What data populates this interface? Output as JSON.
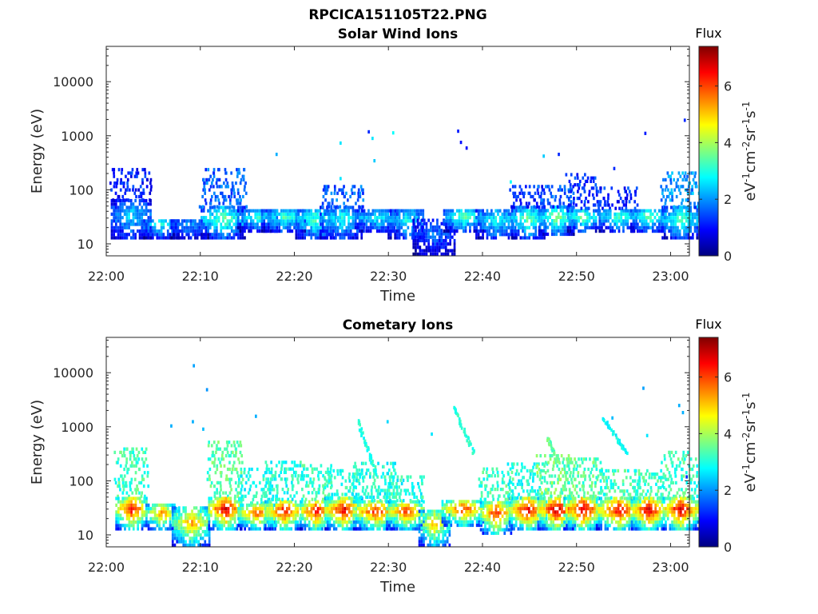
{
  "figure": {
    "title": "RPCICA151105T22.PNG"
  },
  "colormap": {
    "name": "jet",
    "label": "eV-1cm-2sr-1s-1",
    "title": "Flux",
    "range": [
      0,
      7.4
    ],
    "ticks": [
      "0",
      "2",
      "4",
      "6"
    ],
    "stops": [
      "#00007f",
      "#0000ff",
      "#007fff",
      "#00ffff",
      "#7fff7f",
      "#ffff00",
      "#ff7f00",
      "#ff0000",
      "#7f0000"
    ]
  },
  "chart_data": [
    {
      "type": "heatmap",
      "title": "Solar Wind Ions",
      "xlabel": "Time",
      "ylabel": "Energy (eV)",
      "x_ticks": [
        "22:00",
        "22:10",
        "22:20",
        "22:30",
        "22:40",
        "22:50",
        "23:00"
      ],
      "x_tick_minutes": [
        0,
        10,
        20,
        30,
        40,
        50,
        60
      ],
      "xlim_minutes": [
        0,
        62
      ],
      "y_scale": "log",
      "y_ticks": [
        "10",
        "100",
        "1000",
        "10000"
      ],
      "y_tick_values": [
        10,
        100,
        1000,
        10000
      ],
      "ylim": [
        6,
        45000
      ],
      "grid": false,
      "clusters": [
        {
          "t": 2.6,
          "e_lo": 12,
          "e_hi": 60,
          "peak": 2.6,
          "tail_e": 230,
          "tail_flux": 1.1
        },
        {
          "t": 5.8,
          "e_lo": 12,
          "e_hi": 28,
          "peak": 3.0
        },
        {
          "t": 8.8,
          "e_lo": 12,
          "e_hi": 26,
          "peak": 2.2
        },
        {
          "t": 12.4,
          "e_lo": 12,
          "e_hi": 45,
          "peak": 3.6,
          "tail_e": 230,
          "tail_flux": 1.6
        },
        {
          "t": 16.0,
          "e_lo": 16,
          "e_hi": 38,
          "peak": 3.0
        },
        {
          "t": 18.8,
          "e_lo": 16,
          "e_hi": 40,
          "peak": 3.3
        },
        {
          "t": 22.2,
          "e_lo": 12,
          "e_hi": 42,
          "peak": 3.4
        },
        {
          "t": 25.0,
          "e_lo": 12,
          "e_hi": 45,
          "peak": 3.0,
          "tail_e": 120,
          "tail_flux": 1.6
        },
        {
          "t": 28.8,
          "e_lo": 16,
          "e_hi": 38,
          "peak": 2.9
        },
        {
          "t": 31.8,
          "e_lo": 12,
          "e_hi": 42,
          "peak": 3.0
        },
        {
          "t": 34.8,
          "e_lo": 6,
          "e_hi": 26,
          "peak": 1.8
        },
        {
          "t": 37.9,
          "e_lo": 16,
          "e_hi": 42,
          "peak": 3.5
        },
        {
          "t": 41.4,
          "e_lo": 12,
          "e_hi": 42,
          "peak": 3.0
        },
        {
          "t": 44.8,
          "e_lo": 12,
          "e_hi": 45,
          "peak": 3.6,
          "tail_e": 120,
          "tail_flux": 1.2
        },
        {
          "t": 47.8,
          "e_lo": 14,
          "e_hi": 45,
          "peak": 3.8,
          "tail_e": 120,
          "tail_flux": 1.5
        },
        {
          "t": 50.6,
          "e_lo": 16,
          "e_hi": 42,
          "peak": 3.6,
          "tail_e": 200,
          "tail_flux": 1.3
        },
        {
          "t": 54.4,
          "e_lo": 16,
          "e_hi": 42,
          "peak": 3.4,
          "tail_e": 110,
          "tail_flux": 1.2
        },
        {
          "t": 57.6,
          "e_lo": 16,
          "e_hi": 42,
          "peak": 3.5
        },
        {
          "t": 61.0,
          "e_lo": 12,
          "e_hi": 45,
          "peak": 3.4,
          "tail_e": 190,
          "tail_flux": 2.0
        }
      ],
      "speckle": [
        {
          "t": 18.0,
          "e": 420,
          "f": 2.2
        },
        {
          "t": 24.8,
          "e": 680,
          "f": 2.6
        },
        {
          "t": 27.8,
          "e": 1100,
          "f": 1.2
        },
        {
          "t": 28.2,
          "e": 830,
          "f": 2.6
        },
        {
          "t": 28.4,
          "e": 320,
          "f": 2.4
        },
        {
          "t": 30.4,
          "e": 1050,
          "f": 2.8
        },
        {
          "t": 37.3,
          "e": 1130,
          "f": 1.1
        },
        {
          "t": 37.6,
          "e": 700,
          "f": 1.0
        },
        {
          "t": 38.2,
          "e": 550,
          "f": 0.9
        },
        {
          "t": 46.4,
          "e": 390,
          "f": 2.4
        },
        {
          "t": 48.0,
          "e": 420,
          "f": 1.2
        },
        {
          "t": 53.9,
          "e": 230,
          "f": 1.2
        },
        {
          "t": 57.2,
          "e": 1030,
          "f": 1.1
        },
        {
          "t": 61.4,
          "e": 1800,
          "f": 1.2
        },
        {
          "t": 42.9,
          "e": 130,
          "f": 2.8
        },
        {
          "t": 24.8,
          "e": 150,
          "f": 2.6
        }
      ]
    },
    {
      "type": "heatmap",
      "title": "Cometary Ions",
      "xlabel": "Time",
      "ylabel": "Energy (eV)",
      "x_ticks": [
        "22:00",
        "22:10",
        "22:20",
        "22:30",
        "22:40",
        "22:50",
        "23:00"
      ],
      "x_tick_minutes": [
        0,
        10,
        20,
        30,
        40,
        50,
        60
      ],
      "xlim_minutes": [
        0,
        62
      ],
      "y_scale": "log",
      "y_ticks": [
        "10",
        "100",
        "1000",
        "10000"
      ],
      "y_tick_values": [
        10,
        100,
        1000,
        10000
      ],
      "ylim": [
        6,
        45000
      ],
      "grid": false,
      "clusters": [
        {
          "t": 2.6,
          "e_lo": 12,
          "e_hi": 48,
          "peak": 6.6,
          "tail_e": 400,
          "tail_flux": 3.2
        },
        {
          "t": 5.8,
          "e_lo": 12,
          "e_hi": 34,
          "peak": 5.6
        },
        {
          "t": 9.0,
          "e_lo": 6,
          "e_hi": 30,
          "peak": 5.4
        },
        {
          "t": 12.6,
          "e_lo": 12,
          "e_hi": 48,
          "peak": 7.0,
          "tail_e": 500,
          "tail_flux": 3.4
        },
        {
          "t": 16.0,
          "e_lo": 12,
          "e_hi": 36,
          "peak": 6.0,
          "tail_e": 160,
          "tail_flux": 3.0
        },
        {
          "t": 18.8,
          "e_lo": 12,
          "e_hi": 42,
          "peak": 6.6,
          "tail_e": 230,
          "tail_flux": 3.0
        },
        {
          "t": 22.2,
          "e_lo": 12,
          "e_hi": 42,
          "peak": 6.8,
          "tail_e": 180,
          "tail_flux": 3.2
        },
        {
          "t": 25.2,
          "e_lo": 12,
          "e_hi": 45,
          "peak": 6.8,
          "tail_e": 160,
          "tail_flux": 3.0
        },
        {
          "t": 28.6,
          "e_lo": 12,
          "e_hi": 40,
          "peak": 6.4,
          "tail_e": 200,
          "tail_flux": 3.0
        },
        {
          "t": 31.8,
          "e_lo": 12,
          "e_hi": 40,
          "peak": 6.2,
          "tail_e": 110,
          "tail_flux": 3.0
        },
        {
          "t": 34.8,
          "e_lo": 6,
          "e_hi": 28,
          "peak": 5.2
        },
        {
          "t": 37.9,
          "e_lo": 14,
          "e_hi": 42,
          "peak": 6.2
        },
        {
          "t": 41.4,
          "e_lo": 10,
          "e_hi": 42,
          "peak": 6.4,
          "tail_e": 160,
          "tail_flux": 3.2
        },
        {
          "t": 44.8,
          "e_lo": 12,
          "e_hi": 45,
          "peak": 6.9,
          "tail_e": 190,
          "tail_flux": 3.0
        },
        {
          "t": 47.8,
          "e_lo": 12,
          "e_hi": 48,
          "peak": 7.2,
          "tail_e": 300,
          "tail_flux": 3.6
        },
        {
          "t": 50.6,
          "e_lo": 12,
          "e_hi": 48,
          "peak": 7.0,
          "tail_e": 240,
          "tail_flux": 3.4
        },
        {
          "t": 54.4,
          "e_lo": 12,
          "e_hi": 45,
          "peak": 6.8,
          "tail_e": 150,
          "tail_flux": 3.2
        },
        {
          "t": 57.6,
          "e_lo": 12,
          "e_hi": 45,
          "peak": 7.0,
          "tail_e": 150,
          "tail_flux": 3.2
        },
        {
          "t": 61.0,
          "e_lo": 12,
          "e_hi": 48,
          "peak": 7.0,
          "tail_e": 340,
          "tail_flux": 3.2
        }
      ],
      "dispersion": [
        {
          "t0": 26.6,
          "t1": 28.6,
          "e0": 1200,
          "e1": 120,
          "f": 3.0
        },
        {
          "t0": 36.8,
          "t1": 39.0,
          "e0": 2100,
          "e1": 300,
          "f": 3.1
        },
        {
          "t0": 46.8,
          "t1": 48.0,
          "e0": 560,
          "e1": 200,
          "f": 3.5
        },
        {
          "t0": 52.8,
          "t1": 55.2,
          "e0": 1300,
          "e1": 300,
          "f": 2.8
        }
      ],
      "speckle": [
        {
          "t": 9.2,
          "e": 12500,
          "f": 2.1
        },
        {
          "t": 10.6,
          "e": 4500,
          "f": 2.0
        },
        {
          "t": 6.8,
          "e": 960,
          "f": 2.2
        },
        {
          "t": 9.1,
          "e": 1150,
          "f": 2.2
        },
        {
          "t": 10.2,
          "e": 840,
          "f": 2.3
        },
        {
          "t": 15.8,
          "e": 1450,
          "f": 2.2
        },
        {
          "t": 29.8,
          "e": 1150,
          "f": 2.5
        },
        {
          "t": 34.5,
          "e": 680,
          "f": 2.6
        },
        {
          "t": 57.0,
          "e": 4800,
          "f": 2.1
        },
        {
          "t": 60.8,
          "e": 2300,
          "f": 2.2
        },
        {
          "t": 61.2,
          "e": 1700,
          "f": 2.2
        },
        {
          "t": 61.6,
          "e": 110,
          "f": 1.2
        },
        {
          "t": 53.7,
          "e": 1350,
          "f": 2.3
        },
        {
          "t": 57.4,
          "e": 640,
          "f": 2.6
        }
      ]
    }
  ]
}
